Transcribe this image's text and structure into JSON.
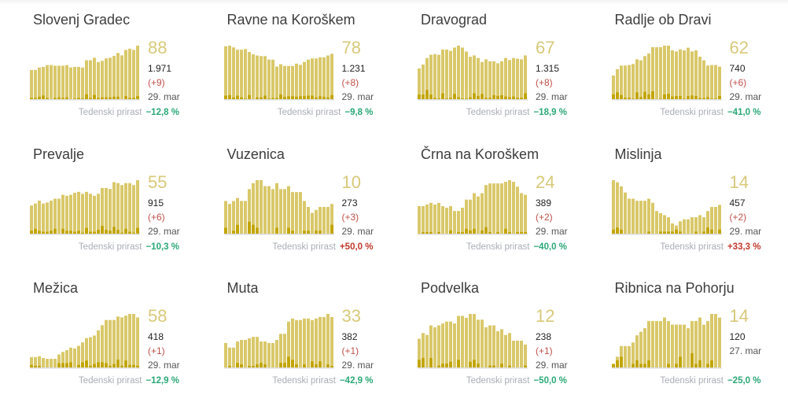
{
  "growth_label": "Tedenski prirast",
  "colors": {
    "bar": "#d9c86a",
    "new": "#c2a500",
    "axis": "#dcdcdc",
    "positive": "#2aa876",
    "negative": "#c0392b"
  },
  "chart_data": [
    {
      "type": "bar",
      "title": "Slovenj Gradec",
      "active": "88",
      "total": "1.971",
      "increase": "(+9)",
      "date": "29. mar",
      "growth": "−12,8 %",
      "growth_dir": "down",
      "values": [
        48,
        48,
        52,
        53,
        56,
        56,
        55,
        55,
        55,
        56,
        52,
        53,
        53,
        52,
        64,
        64,
        68,
        61,
        63,
        67,
        68,
        71,
        76,
        72,
        81,
        83,
        81,
        88
      ],
      "new": [
        2,
        2,
        4,
        6,
        2,
        0,
        2,
        3,
        2,
        3,
        0,
        1,
        2,
        1,
        8,
        2,
        7,
        2,
        3,
        3,
        3,
        4,
        4,
        0,
        5,
        2,
        2,
        5
      ]
    },
    {
      "type": "bar",
      "title": "Ravne na Koroškem",
      "active": "78",
      "total": "1.231",
      "increase": "(+8)",
      "date": "29. mar",
      "growth": "−9,8 %",
      "growth_dir": "down",
      "values": [
        91,
        92,
        89,
        85,
        85,
        86,
        81,
        77,
        75,
        74,
        74,
        68,
        68,
        56,
        60,
        57,
        57,
        57,
        61,
        59,
        64,
        68,
        70,
        70,
        72,
        72,
        75,
        78
      ],
      "new": [
        6,
        7,
        3,
        6,
        3,
        1,
        7,
        0,
        3,
        3,
        6,
        1,
        2,
        2,
        8,
        4,
        5,
        5,
        4,
        5,
        5,
        6,
        6,
        3,
        5,
        4,
        3,
        7
      ]
    },
    {
      "type": "bar",
      "title": "Dravograd",
      "active": "67",
      "total": "1.315",
      "increase": "(+8)",
      "date": "29. mar",
      "growth": "−18,9 %",
      "growth_dir": "down",
      "values": [
        47,
        53,
        63,
        68,
        69,
        68,
        76,
        76,
        74,
        79,
        82,
        79,
        73,
        65,
        67,
        63,
        57,
        61,
        58,
        58,
        55,
        58,
        63,
        60,
        63,
        62,
        61,
        67
      ],
      "new": [
        7,
        7,
        14,
        7,
        2,
        1,
        9,
        1,
        2,
        8,
        3,
        1,
        1,
        3,
        9,
        5,
        8,
        2,
        2,
        6,
        5,
        6,
        4,
        3,
        4,
        2,
        2,
        9
      ]
    },
    {
      "type": "bar",
      "title": "Radlje ob Dravi",
      "active": "62",
      "total": "740",
      "increase": "(+6)",
      "date": "29. mar",
      "growth": "−41,0 %",
      "growth_dir": "down",
      "values": [
        45,
        57,
        64,
        64,
        65,
        67,
        76,
        74,
        82,
        87,
        99,
        99,
        99,
        102,
        102,
        93,
        91,
        95,
        93,
        98,
        91,
        93,
        81,
        74,
        64,
        65,
        65,
        62
      ],
      "new": [
        9,
        13,
        8,
        3,
        3,
        1,
        13,
        4,
        14,
        9,
        15,
        0,
        1,
        9,
        10,
        5,
        6,
        6,
        1,
        6,
        7,
        6,
        2,
        2,
        4,
        1,
        1,
        6
      ]
    },
    {
      "type": "bar",
      "title": "Prevalje",
      "active": "55",
      "total": "915",
      "increase": "(+6)",
      "date": "29. mar",
      "growth": "−10,3 %",
      "growth_dir": "down",
      "values": [
        29,
        31,
        34,
        31,
        32,
        34,
        36,
        36,
        40,
        39,
        40,
        42,
        43,
        41,
        43,
        41,
        39,
        41,
        47,
        47,
        46,
        53,
        52,
        50,
        52,
        52,
        50,
        55
      ],
      "new": [
        3,
        5,
        3,
        2,
        2,
        3,
        5,
        0,
        5,
        3,
        3,
        2,
        3,
        1,
        6,
        2,
        2,
        4,
        8,
        4,
        3,
        7,
        4,
        1,
        5,
        2,
        1,
        6
      ]
    },
    {
      "type": "bar",
      "title": "Vuzenica",
      "active": "10",
      "total": "273",
      "increase": "(+3)",
      "date": "29. mar",
      "growth": "+50,0 %",
      "growth_dir": "up",
      "values": [
        11,
        10,
        11,
        12,
        11,
        11,
        15,
        17,
        18,
        18,
        16,
        16,
        15,
        17,
        15,
        15,
        16,
        14,
        14,
        14,
        11,
        9,
        7,
        8,
        9,
        9,
        9,
        10
      ],
      "new": [
        2,
        0,
        1,
        3,
        0,
        0,
        4,
        3,
        2,
        0,
        0,
        0,
        0,
        2,
        0,
        0,
        2,
        1,
        0,
        0,
        1,
        1,
        0,
        1,
        1,
        0,
        0,
        3
      ]
    },
    {
      "type": "bar",
      "title": "Črna na Koroškem",
      "active": "24",
      "total": "389",
      "increase": "(+2)",
      "date": "29. mar",
      "growth": "−40,0 %",
      "growth_dir": "down",
      "values": [
        17,
        17,
        18,
        19,
        18,
        19,
        17,
        16,
        17,
        14,
        14,
        16,
        21,
        21,
        25,
        23,
        25,
        30,
        31,
        31,
        31,
        31,
        32,
        33,
        32,
        29,
        25,
        24
      ],
      "new": [
        0,
        1,
        1,
        1,
        0,
        1,
        0,
        0,
        2,
        0,
        1,
        1,
        3,
        2,
        3,
        0,
        2,
        4,
        1,
        0,
        1,
        0,
        3,
        1,
        0,
        1,
        1,
        1
      ]
    },
    {
      "type": "bar",
      "title": "Mislinja",
      "active": "14",
      "total": "457",
      "increase": "(+2)",
      "date": "29. mar",
      "growth": "+33,3 %",
      "growth_dir": "up",
      "values": [
        26,
        25,
        23,
        20,
        17,
        17,
        16,
        16,
        16,
        17,
        15,
        11,
        10,
        9,
        8,
        5,
        4,
        6,
        7,
        7,
        8,
        8,
        9,
        8,
        11,
        13,
        13,
        14
      ],
      "new": [
        2,
        3,
        2,
        0,
        0,
        0,
        0,
        0,
        0,
        1,
        0,
        0,
        1,
        1,
        1,
        1,
        2,
        1,
        0,
        0,
        0,
        1,
        0,
        1,
        3,
        2,
        0,
        2
      ]
    },
    {
      "type": "bar",
      "title": "Mežica",
      "active": "58",
      "total": "418",
      "increase": "(+1)",
      "date": "29. mar",
      "growth": "−12,9 %",
      "growth_dir": "down",
      "values": [
        12,
        12,
        13,
        11,
        10,
        10,
        10,
        15,
        18,
        20,
        23,
        22,
        25,
        29,
        34,
        35,
        37,
        43,
        49,
        55,
        55,
        55,
        59,
        58,
        60,
        62,
        62,
        58
      ],
      "new": [
        3,
        2,
        2,
        0,
        0,
        0,
        0,
        5,
        5,
        5,
        6,
        0,
        3,
        6,
        8,
        2,
        4,
        6,
        6,
        5,
        2,
        4,
        9,
        2,
        8,
        3,
        3,
        2
      ]
    },
    {
      "type": "bar",
      "title": "Muta",
      "active": "33",
      "total": "382",
      "increase": "(+1)",
      "date": "29. mar",
      "growth": "−42,9 %",
      "growth_dir": "down",
      "values": [
        16,
        13,
        13,
        17,
        18,
        18,
        19,
        20,
        20,
        17,
        17,
        16,
        16,
        18,
        22,
        22,
        30,
        32,
        31,
        31,
        32,
        32,
        31,
        32,
        33,
        33,
        35,
        33
      ],
      "new": [
        0,
        1,
        0,
        3,
        2,
        0,
        1,
        1,
        2,
        3,
        2,
        0,
        0,
        0,
        3,
        3,
        7,
        5,
        2,
        0,
        2,
        0,
        4,
        2,
        4,
        0,
        2,
        1
      ]
    },
    {
      "type": "bar",
      "title": "Podvelka",
      "active": "12",
      "total": "238",
      "increase": "(+1)",
      "date": "29. mar",
      "growth": "−50,0 %",
      "growth_dir": "down",
      "values": [
        15,
        18,
        17,
        22,
        21,
        22,
        23,
        24,
        24,
        23,
        27,
        27,
        26,
        28,
        28,
        25,
        25,
        21,
        22,
        22,
        19,
        20,
        17,
        18,
        14,
        14,
        14,
        12
      ],
      "new": [
        4,
        5,
        0,
        5,
        0,
        1,
        2,
        2,
        3,
        0,
        4,
        0,
        0,
        3,
        4,
        2,
        0,
        0,
        1,
        1,
        0,
        2,
        0,
        1,
        0,
        0,
        0,
        1
      ]
    },
    {
      "type": "bar",
      "title": "Ribnica na Pohorju",
      "active": "14",
      "total": "120",
      "increase": "",
      "date": "27. mar",
      "growth": "−25,0 %",
      "growth_dir": "down",
      "values": [
        1,
        3,
        6,
        6,
        6,
        7,
        9,
        10,
        11,
        13,
        13,
        13,
        13,
        14,
        13,
        12,
        12,
        12,
        12,
        11,
        13,
        13,
        14,
        12,
        13,
        15,
        15,
        14
      ],
      "new": [
        1,
        2,
        3,
        0,
        0,
        1,
        2,
        1,
        1,
        2,
        0,
        0,
        0,
        0,
        1,
        0,
        1,
        3,
        0,
        0,
        4,
        1,
        2,
        0,
        1,
        2,
        0,
        0
      ]
    }
  ]
}
